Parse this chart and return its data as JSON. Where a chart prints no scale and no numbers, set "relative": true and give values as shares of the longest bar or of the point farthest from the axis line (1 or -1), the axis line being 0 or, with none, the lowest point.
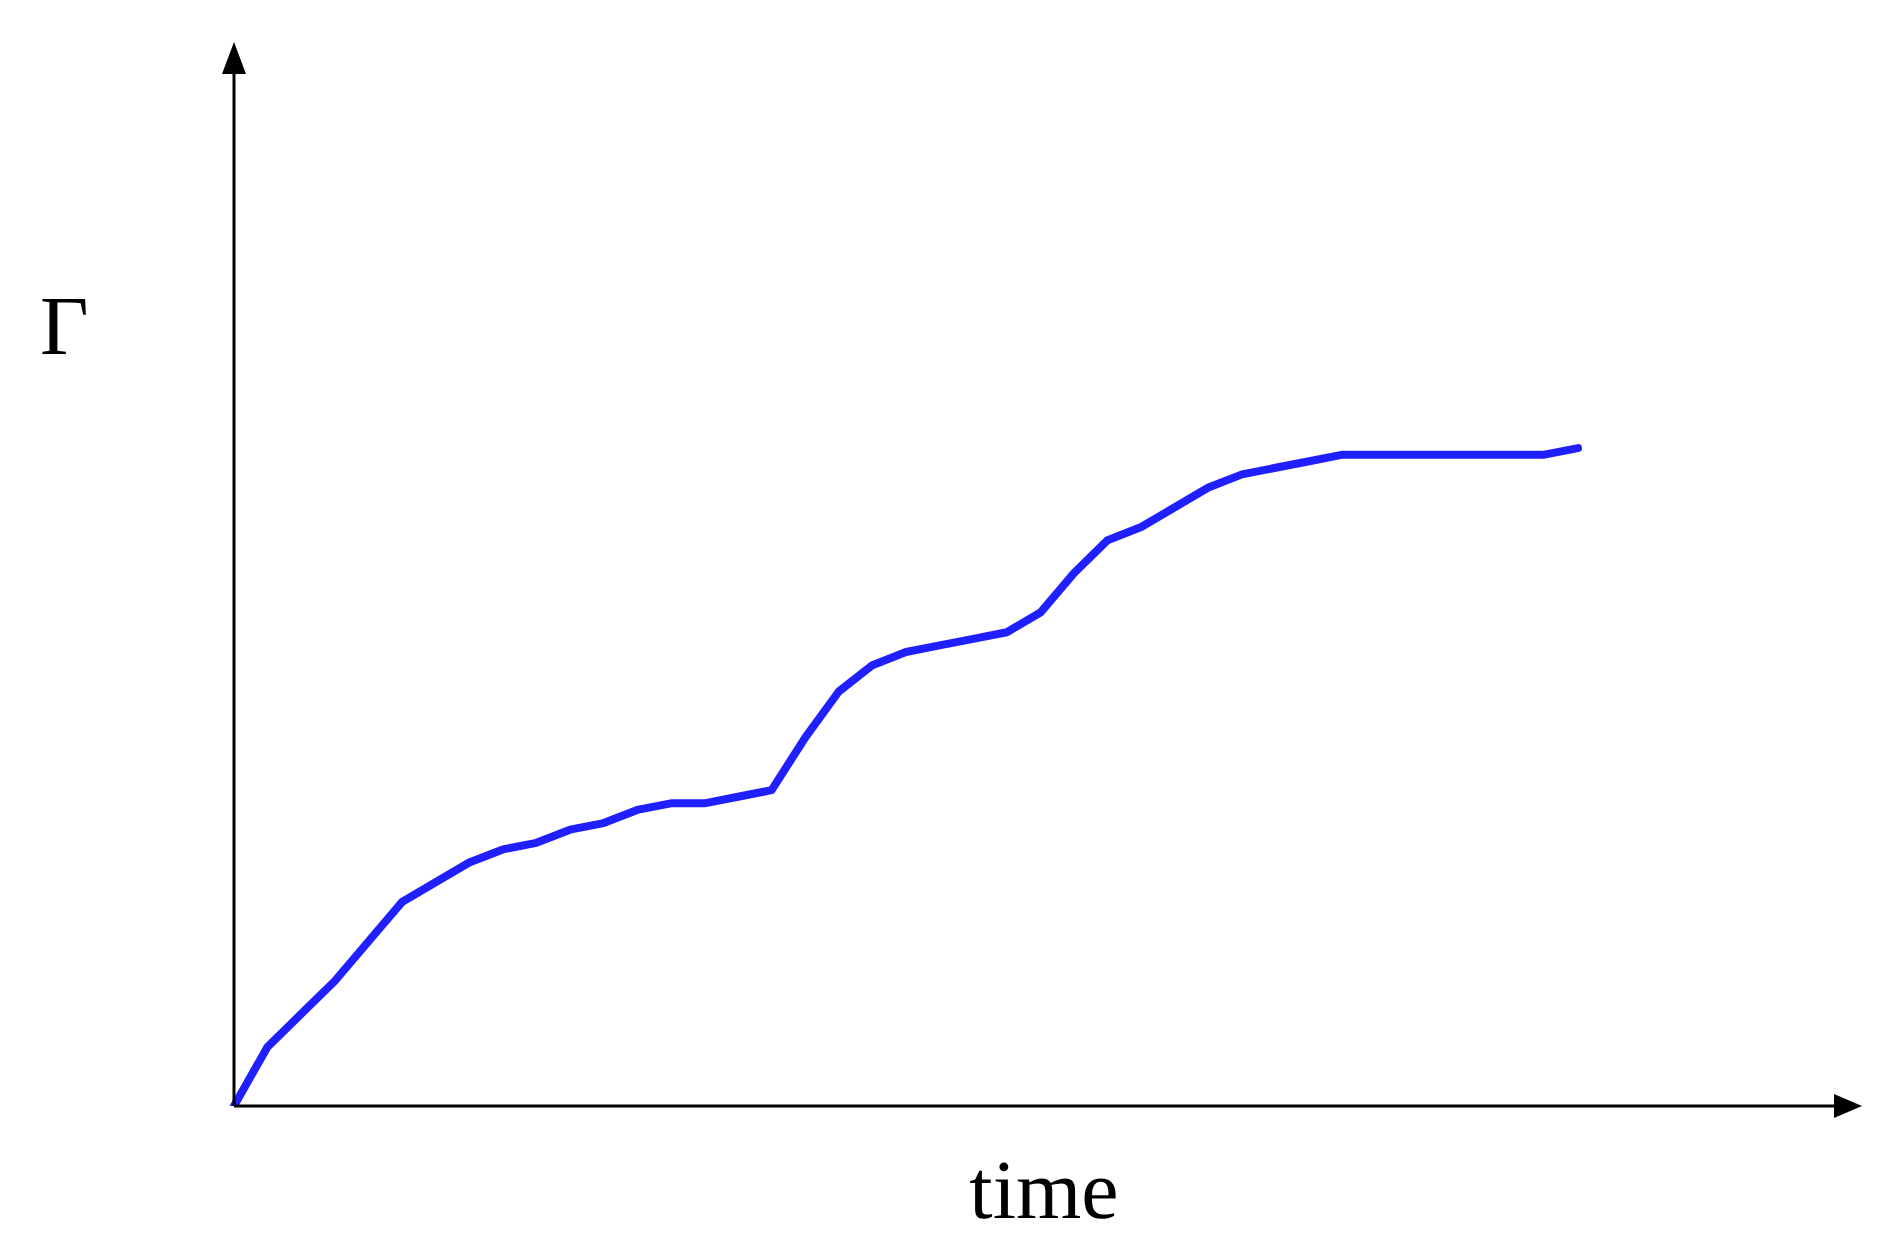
{
  "chart_data": {
    "type": "line",
    "relative": true,
    "xlabel": "time",
    "ylabel": "Γ",
    "grid": false,
    "legend": false,
    "marker": "none",
    "line_style": "solid",
    "categories": [
      null,
      null,
      null,
      null,
      null,
      null,
      null,
      null,
      null,
      null,
      null,
      null,
      null,
      null,
      null,
      null,
      null,
      null,
      null,
      null,
      null,
      null,
      null,
      null,
      null,
      null,
      null,
      null,
      null,
      null,
      null,
      null,
      null,
      null,
      null,
      null,
      null,
      null,
      null,
      null,
      null
    ],
    "series": [
      {
        "color": "#1f1fff",
        "values": [
          0,
          0.09,
          0.14,
          0.19,
          0.25,
          0.31,
          0.34,
          0.37,
          0.39,
          0.4,
          0.42,
          0.43,
          0.45,
          0.46,
          0.46,
          0.47,
          0.48,
          0.56,
          0.63,
          0.67,
          0.69,
          0.7,
          0.71,
          0.72,
          0.75,
          0.81,
          0.86,
          0.88,
          0.91,
          0.94,
          0.96,
          0.97,
          0.98,
          0.99,
          0.99,
          0.99,
          0.99,
          0.99,
          0.99,
          0.99,
          1
        ]
      }
    ]
  }
}
